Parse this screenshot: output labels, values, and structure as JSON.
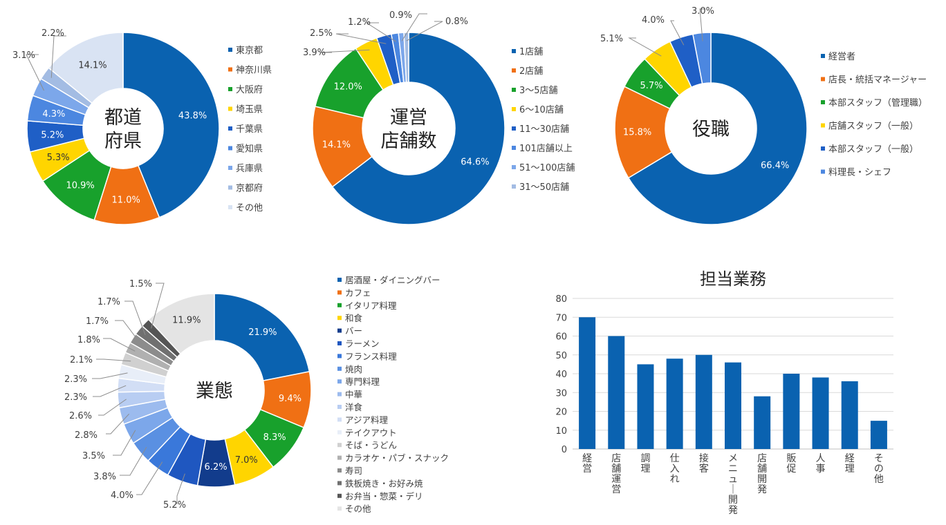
{
  "colors": {
    "blue": "#0a62b0",
    "orange": "#f07014",
    "green": "#18a12c",
    "yellow": "#ffd500",
    "blue2": "#1f5fc6",
    "blue3": "#4c87e0",
    "blue4": "#7ca7ea",
    "blue5": "#a3bce3",
    "blue6": "#d9e3f3"
  },
  "chart_data": [
    {
      "type": "pie",
      "title": "都道府県",
      "title_lines": [
        "都道",
        "府県"
      ],
      "categories": [
        "東京都",
        "神奈川県",
        "大阪府",
        "埼玉県",
        "千葉県",
        "愛知県",
        "兵庫県",
        "京都府",
        "その他"
      ],
      "values": [
        43.8,
        11.0,
        10.9,
        5.3,
        5.2,
        4.3,
        3.1,
        2.2,
        14.1
      ],
      "labels": [
        "43.8%",
        "11.0%",
        "10.9%",
        "5.3%",
        "5.2%",
        "4.3%",
        "3.1%",
        "2.2%",
        "14.1%"
      ],
      "label_outside": [
        false,
        false,
        false,
        false,
        false,
        false,
        true,
        true,
        false
      ],
      "colors": [
        "#0a62b0",
        "#f07014",
        "#18a12c",
        "#ffd500",
        "#1f5fc6",
        "#4c87e0",
        "#7ca7ea",
        "#a3bce3",
        "#d9e3f3"
      ]
    },
    {
      "type": "pie",
      "title": "運営店舗数",
      "title_lines": [
        "運営",
        "店舗数"
      ],
      "categories": [
        "1店舗",
        "2店舗",
        "3～5店舗",
        "6～10店舗",
        "11～30店舗",
        "101店舗以上",
        "51～100店舗",
        "31～50店舗"
      ],
      "values": [
        64.6,
        14.1,
        12.0,
        3.9,
        2.5,
        1.2,
        0.9,
        0.8
      ],
      "labels": [
        "64.6%",
        "14.1%",
        "12.0%",
        "3.9%",
        "2.5%",
        "1.2%",
        "0.9%",
        "0.8%"
      ],
      "label_outside": [
        false,
        false,
        false,
        true,
        true,
        true,
        true,
        true
      ],
      "colors": [
        "#0a62b0",
        "#f07014",
        "#18a12c",
        "#ffd500",
        "#1f5fc6",
        "#4c87e0",
        "#7ca7ea",
        "#a3bce3"
      ]
    },
    {
      "type": "pie",
      "title": "役職",
      "title_lines": [
        "役職"
      ],
      "categories": [
        "経営者",
        "店長・統括マネージャー",
        "本部スタッフ（管理職）",
        "店舗スタッフ（一般）",
        "本部スタッフ（一般）",
        "料理長・シェフ"
      ],
      "values": [
        66.4,
        15.8,
        5.7,
        5.1,
        4.0,
        3.0
      ],
      "labels": [
        "66.4%",
        "15.8%",
        "5.7%",
        "5.1%",
        "4.0%",
        "3.0%"
      ],
      "label_outside": [
        false,
        false,
        false,
        true,
        true,
        true
      ],
      "colors": [
        "#0a62b0",
        "#f07014",
        "#18a12c",
        "#ffd500",
        "#1f5fc6",
        "#4c87e0"
      ]
    },
    {
      "type": "pie",
      "title": "業態",
      "title_lines": [
        "業態"
      ],
      "categories": [
        "居酒屋・ダイニングバー",
        "カフェ",
        "イタリア料理",
        "和食",
        "バー",
        "ラーメン",
        "フランス料理",
        "焼肉",
        "専門料理",
        "中華",
        "洋食",
        "アジア料理",
        "テイクアウト",
        "そば・うどん",
        "カラオケ・パブ・スナック",
        "寿司",
        "鉄板焼き・お好み焼",
        "お弁当・惣菜・デリ",
        "その他"
      ],
      "values": [
        21.9,
        9.4,
        8.3,
        7.0,
        6.2,
        5.2,
        4.0,
        3.8,
        3.5,
        2.8,
        2.6,
        2.3,
        2.3,
        2.1,
        1.8,
        1.7,
        1.7,
        1.5,
        11.9
      ],
      "labels": [
        "21.9%",
        "9.4%",
        "8.3%",
        "7.0%",
        "6.2%",
        "5.2%",
        "4.0%",
        "3.8%",
        "3.5%",
        "2.8%",
        "2.6%",
        "2.3%",
        "2.3%",
        "2.1%",
        "1.8%",
        "1.7%",
        "1.7%",
        "1.5%",
        "11.9%"
      ],
      "label_outside": [
        false,
        false,
        false,
        false,
        false,
        true,
        true,
        true,
        true,
        true,
        true,
        true,
        true,
        true,
        true,
        true,
        true,
        true,
        false
      ],
      "colors": [
        "#0a62b0",
        "#f07014",
        "#18a12c",
        "#ffd500",
        "#123c8c",
        "#1f57c0",
        "#3a78da",
        "#5a90e2",
        "#7ca7ea",
        "#9cbbee",
        "#b8cdf2",
        "#d2def5",
        "#e8eef8",
        "#d0d0d0",
        "#b0b0b0",
        "#8c8c8c",
        "#707070",
        "#555555",
        "#e4e4e4"
      ]
    },
    {
      "type": "bar",
      "title": "担当業務",
      "categories": [
        "経営",
        "店舗運営",
        "調理",
        "仕入れ",
        "接客",
        "メニュー開発",
        "店舗開発",
        "販促",
        "人事",
        "経理",
        "その他"
      ],
      "values": [
        70,
        60,
        45,
        48,
        50,
        46,
        28,
        40,
        38,
        36,
        15
      ],
      "ylim": [
        0,
        80
      ],
      "yticks": [
        "0",
        "10",
        "20",
        "30",
        "40",
        "50",
        "60",
        "70",
        "80"
      ],
      "grid": true,
      "xlabel": "",
      "ylabel": "",
      "color": "#0a62b0"
    }
  ]
}
